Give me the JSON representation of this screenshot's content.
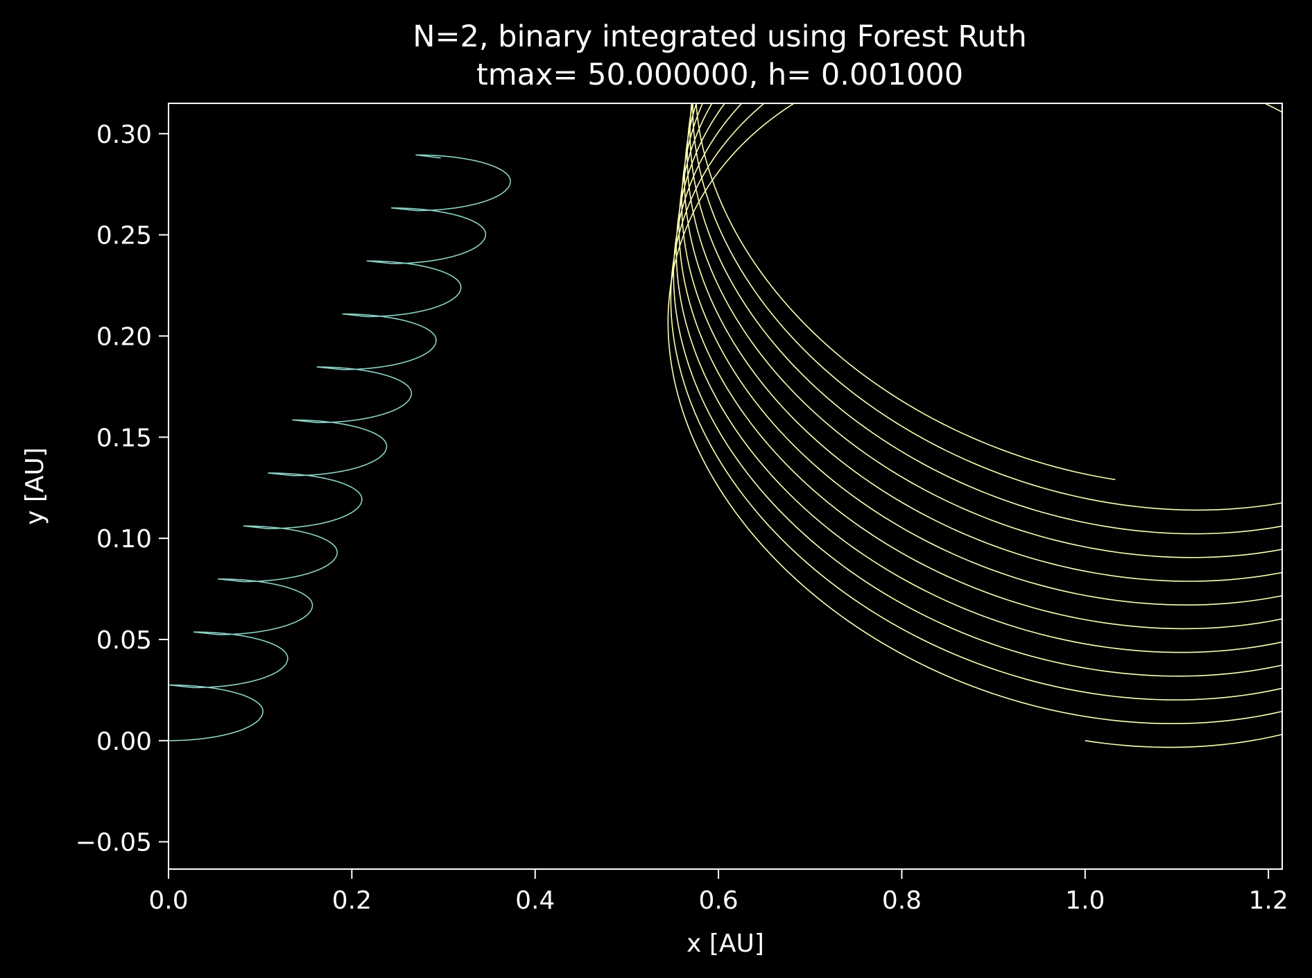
{
  "chart_data": {
    "type": "line",
    "title": [
      "N=2, binary integrated using Forest Ruth",
      "tmax= 50.000000, h= 0.001000"
    ],
    "xlabel": "x [AU]",
    "ylabel": "y [AU]",
    "xlim": [
      0.0,
      1.215
    ],
    "ylim": [
      -0.0635,
      0.315
    ],
    "xticks": [
      0.0,
      0.2,
      0.4,
      0.6,
      0.8,
      1.0,
      1.2
    ],
    "xtick_labels": [
      "0.0",
      "0.2",
      "0.4",
      "0.6",
      "0.8",
      "1.0",
      "1.2"
    ],
    "yticks": [
      -0.05,
      0.0,
      0.05,
      0.1,
      0.15,
      0.2,
      0.25,
      0.3
    ],
    "ytick_labels": [
      "−0.05",
      "0.00",
      "0.05",
      "0.10",
      "0.15",
      "0.20",
      "0.25",
      "0.30"
    ],
    "grid": false,
    "background": "#000000",
    "axes_color": "#ffffff",
    "series": [
      {
        "color": "#8dd3c7",
        "description_values": {
          "orbits": 11,
          "start": [
            0.0,
            0.0
          ],
          "end": [
            0.297,
            0.288
          ],
          "drift_per_orbit": [
            0.027,
            0.0262
          ],
          "cusp_offset": [
            0.0,
            0.0275
          ],
          "loop_max_x_offset": 0.103,
          "loop_max_x_y_offset": 0.0145
        }
      },
      {
        "color": "#ffffb3",
        "description_values": {
          "orbits": 11,
          "start": [
            1.0,
            0.0
          ],
          "end": [
            1.033,
            0.129
          ],
          "centers_first": [
            0.705,
            0.1615
          ],
          "centers_last": [
            0.825,
            0.1305
          ],
          "semi_axis_x": 0.471,
          "semi_axis_y": 0.1675,
          "tilt_deg": -4.3
        }
      }
    ]
  }
}
